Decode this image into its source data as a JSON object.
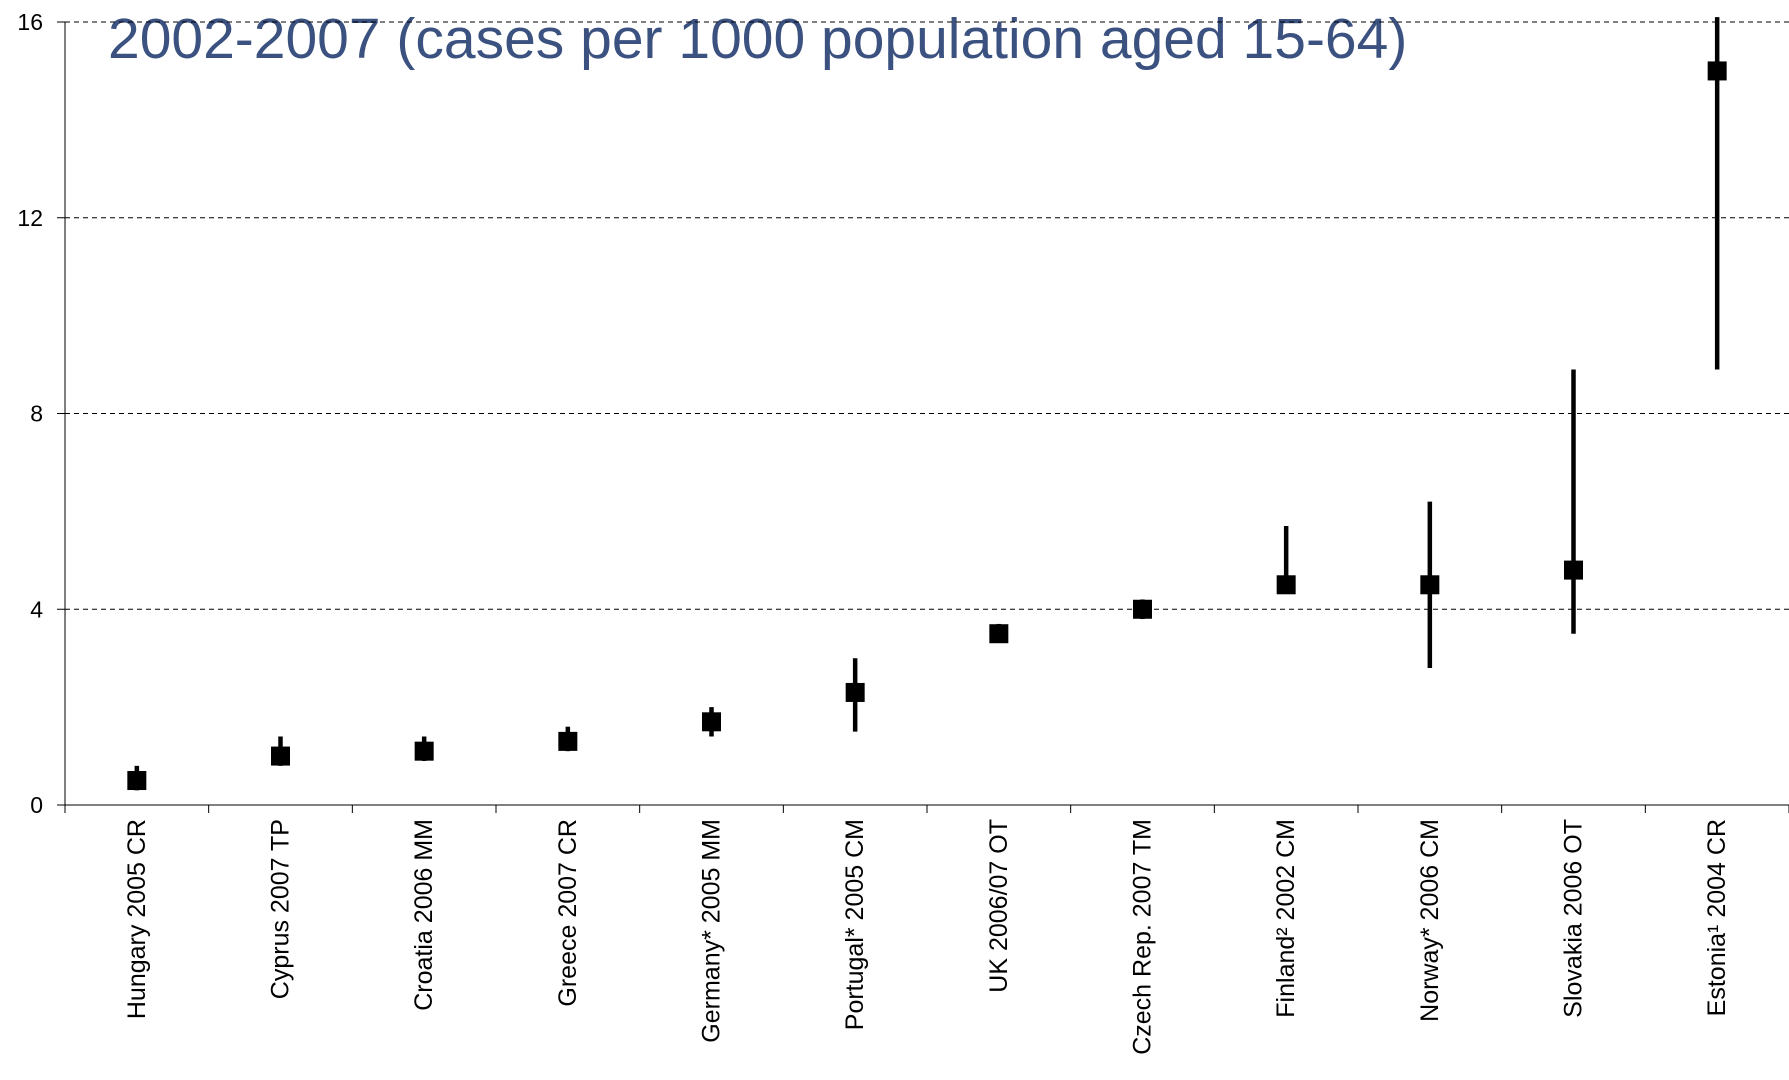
{
  "chart_data": {
    "type": "errorbar",
    "title": "2002-2007 (cases per 1000 population aged 15-64)",
    "categories": [
      "Hungary 2005 CR",
      "Cyprus 2007 TP",
      "Croatia 2006 MM",
      "Greece 2007 CR",
      "Germany* 2005 MM",
      "Portugal* 2005 CM",
      "UK 2006/07 OT",
      "Czech Rep. 2007 TM",
      "Finland² 2002 CM",
      "Norway* 2006 CM",
      "Slovakia 2006 OT",
      "Estonia¹ 2004 CR"
    ],
    "values": [
      0.5,
      1.0,
      1.1,
      1.3,
      1.7,
      2.3,
      3.5,
      4.0,
      4.5,
      4.5,
      4.8,
      15.0
    ],
    "lower": [
      0.3,
      0.8,
      0.9,
      1.1,
      1.4,
      1.5,
      3.4,
      3.8,
      4.4,
      2.8,
      3.5,
      8.9
    ],
    "upper": [
      0.8,
      1.4,
      1.4,
      1.6,
      2.0,
      3.0,
      3.7,
      4.2,
      5.7,
      6.2,
      8.9,
      16.1
    ],
    "color": "#000000",
    "ylim": [
      0,
      16
    ],
    "yticks": [
      0,
      4,
      8,
      12,
      16
    ],
    "grid": true
  }
}
